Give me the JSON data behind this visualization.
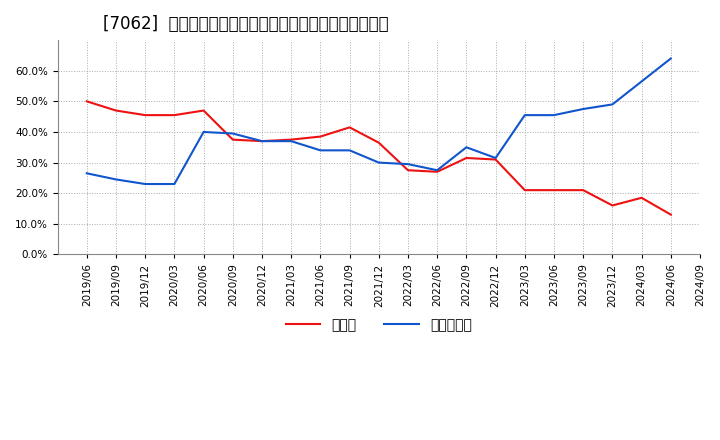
{
  "title": "[7062]  現須金、有利子負債の総資産に対する比率の推移",
  "x_labels": [
    "2019/06",
    "2019/09",
    "2019/12",
    "2020/03",
    "2020/06",
    "2020/09",
    "2020/12",
    "2021/03",
    "2021/06",
    "2021/09",
    "2021/12",
    "2022/03",
    "2022/06",
    "2022/09",
    "2022/12",
    "2023/03",
    "2023/06",
    "2023/09",
    "2023/12",
    "2024/03",
    "2024/06",
    "2024/09"
  ],
  "cash": [
    0.5,
    0.47,
    0.455,
    0.455,
    0.47,
    0.375,
    0.37,
    0.375,
    0.385,
    0.415,
    0.365,
    0.275,
    0.27,
    0.315,
    0.31,
    0.21,
    0.21,
    0.21,
    0.16,
    0.185,
    0.13,
    null
  ],
  "debt": [
    0.265,
    0.245,
    0.23,
    0.23,
    0.4,
    0.395,
    0.37,
    0.37,
    0.34,
    0.34,
    0.3,
    0.295,
    0.275,
    0.35,
    0.315,
    0.455,
    0.455,
    0.475,
    0.49,
    0.565,
    0.64,
    null
  ],
  "cash_color": "#ee1111",
  "debt_color": "#1155cc",
  "legend_cash": "現須金",
  "legend_debt": "有利子負債",
  "ylim": [
    0.0,
    0.7
  ],
  "yticks": [
    0.0,
    0.1,
    0.2,
    0.3,
    0.4,
    0.5,
    0.6
  ],
  "background_color": "#ffffff",
  "grid_color": "#aaaaaa",
  "title_fontsize": 12,
  "axis_fontsize": 7.5,
  "legend_fontsize": 10
}
